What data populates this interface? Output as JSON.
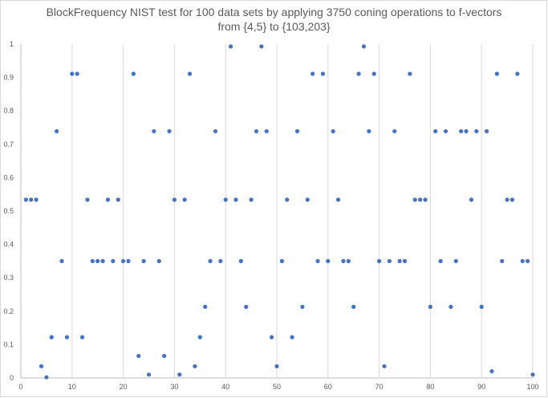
{
  "chart_data": {
    "type": "scatter",
    "title_line1": "BlockFrequency NIST test for 100 data sets by applying 3750 coning operations to f-vectors",
    "title_line2": "from {4,5} to {103,203}",
    "xlabel": "",
    "ylabel": "",
    "xlim": [
      0,
      100
    ],
    "ylim": [
      0,
      1
    ],
    "x_ticks": [
      "0",
      "10",
      "20",
      "30",
      "40",
      "50",
      "60",
      "70",
      "80",
      "90",
      "100"
    ],
    "y_ticks": [
      "0",
      "0.1",
      "0.2",
      "0.3",
      "0.4",
      "0.5",
      "0.6",
      "0.7",
      "0.8",
      "0.9",
      "1"
    ],
    "grid": "vertical",
    "series": [
      {
        "color": "#4472c4",
        "points": [
          [
            1,
            0.534
          ],
          [
            2,
            0.534
          ],
          [
            3,
            0.534
          ],
          [
            4,
            0.035
          ],
          [
            5,
            0.002
          ],
          [
            6,
            0.122
          ],
          [
            7,
            0.739
          ],
          [
            8,
            0.35
          ],
          [
            9,
            0.122
          ],
          [
            10,
            0.911
          ],
          [
            11,
            0.911
          ],
          [
            12,
            0.122
          ],
          [
            13,
            0.534
          ],
          [
            14,
            0.35
          ],
          [
            15,
            0.35
          ],
          [
            16,
            0.35
          ],
          [
            17,
            0.534
          ],
          [
            18,
            0.35
          ],
          [
            19,
            0.534
          ],
          [
            20,
            0.35
          ],
          [
            21,
            0.35
          ],
          [
            22,
            0.911
          ],
          [
            23,
            0.066
          ],
          [
            24,
            0.35
          ],
          [
            25,
            0.01
          ],
          [
            26,
            0.739
          ],
          [
            27,
            0.35
          ],
          [
            28,
            0.066
          ],
          [
            29,
            0.739
          ],
          [
            30,
            0.534
          ],
          [
            31,
            0.01
          ],
          [
            32,
            0.534
          ],
          [
            33,
            0.911
          ],
          [
            34,
            0.035
          ],
          [
            35,
            0.122
          ],
          [
            36,
            0.213
          ],
          [
            37,
            0.35
          ],
          [
            38,
            0.739
          ],
          [
            39,
            0.35
          ],
          [
            40,
            0.534
          ],
          [
            41,
            0.993
          ],
          [
            42,
            0.534
          ],
          [
            43,
            0.35
          ],
          [
            44,
            0.213
          ],
          [
            45,
            0.534
          ],
          [
            46,
            0.739
          ],
          [
            47,
            0.993
          ],
          [
            48,
            0.739
          ],
          [
            49,
            0.122
          ],
          [
            50,
            0.035
          ],
          [
            51,
            0.35
          ],
          [
            52,
            0.534
          ],
          [
            53,
            0.122
          ],
          [
            54,
            0.739
          ],
          [
            55,
            0.213
          ],
          [
            56,
            0.534
          ],
          [
            57,
            0.911
          ],
          [
            58,
            0.35
          ],
          [
            59,
            0.911
          ],
          [
            60,
            0.35
          ],
          [
            61,
            0.739
          ],
          [
            62,
            0.534
          ],
          [
            63,
            0.35
          ],
          [
            64,
            0.35
          ],
          [
            65,
            0.213
          ],
          [
            66,
            0.911
          ],
          [
            67,
            0.993
          ],
          [
            68,
            0.739
          ],
          [
            69,
            0.911
          ],
          [
            70,
            0.35
          ],
          [
            71,
            0.035
          ],
          [
            72,
            0.35
          ],
          [
            73,
            0.739
          ],
          [
            74,
            0.35
          ],
          [
            75,
            0.35
          ],
          [
            76,
            0.911
          ],
          [
            77,
            0.534
          ],
          [
            78,
            0.534
          ],
          [
            79,
            0.534
          ],
          [
            80,
            0.213
          ],
          [
            81,
            0.739
          ],
          [
            82,
            0.35
          ],
          [
            83,
            0.739
          ],
          [
            84,
            0.213
          ],
          [
            85,
            0.35
          ],
          [
            86,
            0.739
          ],
          [
            87,
            0.739
          ],
          [
            88,
            0.534
          ],
          [
            89,
            0.739
          ],
          [
            90,
            0.213
          ],
          [
            91,
            0.739
          ],
          [
            92,
            0.02
          ],
          [
            93,
            0.911
          ],
          [
            94,
            0.35
          ],
          [
            95,
            0.534
          ],
          [
            96,
            0.534
          ],
          [
            97,
            0.911
          ],
          [
            98,
            0.35
          ],
          [
            99,
            0.35
          ],
          [
            100,
            0.01
          ]
        ]
      }
    ]
  }
}
